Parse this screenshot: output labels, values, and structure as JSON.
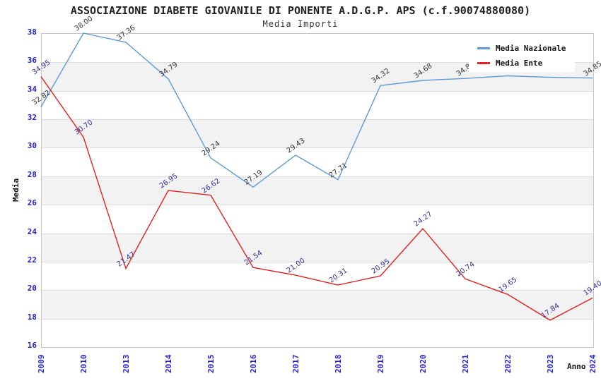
{
  "chart_data": {
    "type": "line",
    "title": "ASSOCIAZIONE DIABETE GIOVANILE DI PONENTE A.D.G.P. APS (c.f.90074880080)",
    "subtitle": "Media Importi",
    "xlabel": "Anno",
    "ylabel": "Media",
    "ylim": [
      16,
      38
    ],
    "ytick_step": 2,
    "grid": "horizontal-bands",
    "band_colors": [
      "#ffffff",
      "#f2f2f2"
    ],
    "gridline_color": "#dcdcdc",
    "plot_border_color": "#c6c6c6",
    "tick_label_color": "#2323c8",
    "legend_position": "top-right",
    "categories": [
      "2009",
      "2010",
      "2013",
      "2014",
      "2015",
      "2016",
      "2017",
      "2018",
      "2019",
      "2020",
      "2021",
      "2022",
      "2023",
      "2024"
    ],
    "series": [
      {
        "name": "Media Nazionale",
        "color": "#5E9AD6",
        "label_color": "#333333",
        "values": [
          32.82,
          38.0,
          37.36,
          34.79,
          29.24,
          27.19,
          29.43,
          27.71,
          34.32,
          34.68,
          34.82,
          35.0,
          34.9,
          34.85
        ],
        "labels": [
          "32.82",
          "38.00",
          "37.36",
          "34.79",
          "29.24",
          "27.19",
          "29.43",
          "27.71",
          "34.32",
          "34.68",
          "34.82",
          "",
          "",
          "34.85"
        ]
      },
      {
        "name": "Media Ente",
        "color": "#E02222",
        "label_color": "#32329B",
        "values": [
          34.95,
          30.7,
          21.47,
          26.95,
          26.62,
          21.54,
          21.0,
          20.31,
          20.95,
          24.27,
          20.74,
          19.65,
          17.84,
          19.4
        ],
        "labels": [
          "34.95",
          "30.70",
          "21.47",
          "26.95",
          "26.62",
          "21.54",
          "21.00",
          "20.31",
          "20.95",
          "24.27",
          "20.74",
          "19.65",
          "17.84",
          "19.40"
        ]
      }
    ]
  }
}
